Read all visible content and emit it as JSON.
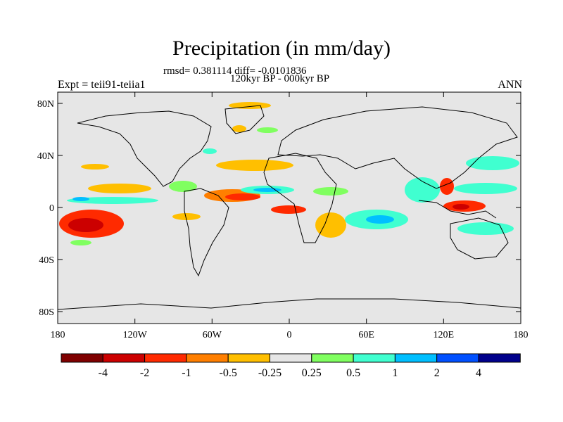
{
  "title": "Precipitation (in mm/day)",
  "stats_line": "rmsd= 0.381114 diff= -0.0101836",
  "period_line": "120kyr BP - 000kyr BP",
  "left_label": "Expt = teii91-teiia1",
  "right_label": "ANN",
  "lat_ticks": [
    "80N",
    "40N",
    "0",
    "40S",
    "80S"
  ],
  "lon_ticks": [
    "180",
    "120W",
    "60W",
    "0",
    "60E",
    "120E",
    "180"
  ],
  "colorbar": {
    "colors": [
      "#7f0000",
      "#cc0000",
      "#ff2a00",
      "#ff7f00",
      "#ffbf00",
      "#e6e6e6",
      "#80ff60",
      "#40ffd0",
      "#00bfff",
      "#0050ff",
      "#00008b"
    ],
    "labels": [
      "-4",
      "-2",
      "-1",
      "-0.5",
      "-0.25",
      "0.25",
      "0.5",
      "1",
      "2",
      "4"
    ]
  },
  "map_style": {
    "background_color": "#e6e6e6",
    "coastline_color": "#000000"
  }
}
